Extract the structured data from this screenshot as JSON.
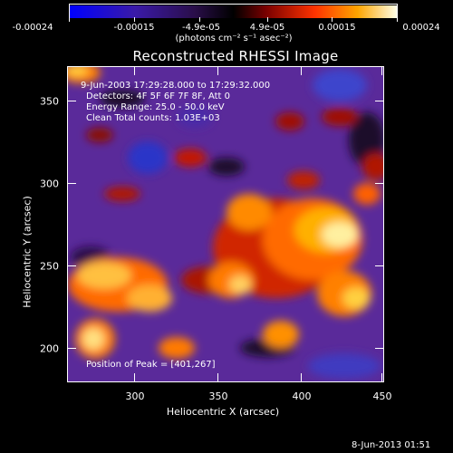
{
  "colorbar": {
    "tick_labels": [
      "-0.00024",
      "-0.00015",
      "-4.9e-05",
      "4.9e-05",
      "0.00015",
      "0.00024"
    ],
    "units": "(photons cm⁻² s⁻¹ asec⁻²)",
    "range": [
      -0.00024,
      0.00024
    ]
  },
  "plot": {
    "title": "Reconstructed RHESSI Image",
    "info_lines": [
      "9-Jun-2003 17:29:28.000 to 17:29:32.000",
      "Detectors: 4F 5F 6F 7F 8F, Att 0",
      "Energy Range: 25.0 - 50.0 keV",
      "Clean     Total counts: 1.03E+03"
    ],
    "peak_label": "Position of Peak = [401,267]",
    "xlabel": "Heliocentric X (arcsec)",
    "ylabel": "Heliocentric Y (arcsec)",
    "xlim": [
      260,
      452
    ],
    "ylim": [
      182,
      374
    ],
    "x_ticks": [
      300,
      350,
      400,
      450
    ],
    "y_ticks": [
      200,
      250,
      300,
      350
    ]
  },
  "footer": {
    "date": "8-Jun-2013 01:51"
  },
  "chart_data": {
    "type": "heatmap",
    "title": "Reconstructed RHESSI Image",
    "xlabel": "Heliocentric X (arcsec)",
    "ylabel": "Heliocentric Y (arcsec)",
    "xlim": [
      260,
      452
    ],
    "ylim": [
      182,
      374
    ],
    "x_ticks": [
      300,
      350,
      400,
      450
    ],
    "y_ticks": [
      200,
      250,
      300,
      350
    ],
    "colorbar_ticks": [
      -0.00024,
      -0.00015,
      -4.9e-05,
      4.9e-05,
      0.00015,
      0.00024
    ],
    "peak": [
      401,
      267
    ]
  }
}
